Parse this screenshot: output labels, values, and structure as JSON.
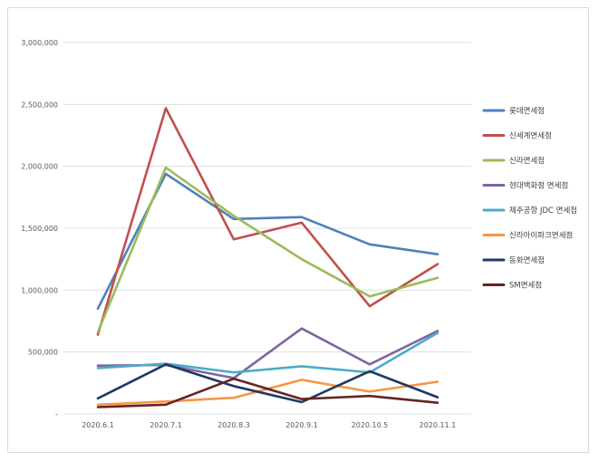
{
  "chart_data": {
    "type": "line",
    "title": "",
    "xlabel": "",
    "ylabel": "",
    "categories": [
      "2020.6.1",
      "2020.7.1",
      "2020.8.3",
      "2020.9.1",
      "2020.10.5",
      "2020.11.1"
    ],
    "ylim": [
      0,
      3000000
    ],
    "yticks": [
      0,
      500000,
      1000000,
      1500000,
      2000000,
      2500000,
      3000000
    ],
    "ytick_labels": [
      "-",
      "500,000",
      "1,000,000",
      "1,500,000",
      "2,000,000",
      "2,500,000",
      "3,000,000"
    ],
    "grid": true,
    "legend_position": "right",
    "series": [
      {
        "name": "롯데면세점",
        "color": "#4F81BD",
        "values": [
          850000,
          1940000,
          1575000,
          1590000,
          1370000,
          1290000
        ]
      },
      {
        "name": "신세계면세점",
        "color": "#C0504D",
        "values": [
          640000,
          2470000,
          1410000,
          1545000,
          870000,
          1210000
        ]
      },
      {
        "name": "신라면세점",
        "color": "#9BBB59",
        "values": [
          660000,
          1990000,
          1600000,
          1250000,
          950000,
          1100000
        ]
      },
      {
        "name": "현대백화점 면세점",
        "color": "#8064A2",
        "values": [
          390000,
          395000,
          290000,
          690000,
          400000,
          670000
        ]
      },
      {
        "name": "제주공항 JDC 면세점",
        "color": "#4BACC6",
        "values": [
          370000,
          405000,
          335000,
          385000,
          335000,
          655000
        ]
      },
      {
        "name": "신라아이파크면세점",
        "color": "#F79646",
        "values": [
          75000,
          100000,
          130000,
          275000,
          180000,
          260000
        ]
      },
      {
        "name": "동화면세점",
        "color": "#1F3864",
        "values": [
          125000,
          400000,
          225000,
          95000,
          345000,
          135000
        ]
      },
      {
        "name": "SM면세점",
        "color": "#632523",
        "values": [
          55000,
          75000,
          285000,
          120000,
          145000,
          90000
        ]
      }
    ]
  }
}
